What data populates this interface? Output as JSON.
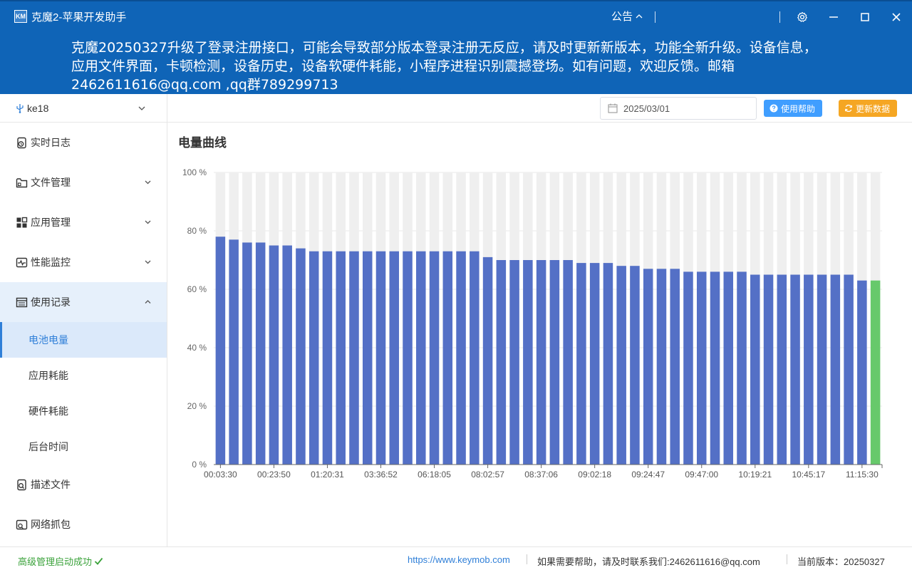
{
  "window": {
    "logo_text": "KM",
    "title": "克魔2-苹果开发助手",
    "notice_label": "公告",
    "accent": "#0f64b7"
  },
  "announcement": {
    "text": "克魔20250327升级了登录注册接口，可能会导致部分版本登录注册无反应，请及时更新新版本，功能全新升级。设备信息，应用文件界面，卡顿检测，设备历史，设备软硬件耗能，小程序进程识别震撼登场。如有问题，欢迎反馈。邮箱2462611616@qq.com ,qq群789299713"
  },
  "sidebar": {
    "device": "ke18",
    "items": [
      {
        "label": "实时日志",
        "icon": "log-icon"
      },
      {
        "label": "文件管理",
        "icon": "folder-icon"
      },
      {
        "label": "应用管理",
        "icon": "apps-icon"
      },
      {
        "label": "性能监控",
        "icon": "monitor-icon"
      },
      {
        "label": "使用记录",
        "icon": "records-icon"
      },
      {
        "label": "描述文件",
        "icon": "profile-icon"
      },
      {
        "label": "网络抓包",
        "icon": "capture-icon"
      }
    ],
    "subitems": [
      {
        "label": "电池电量"
      },
      {
        "label": "应用耗能"
      },
      {
        "label": "硬件耗能"
      },
      {
        "label": "后台时间"
      }
    ]
  },
  "toolbar": {
    "date": "2025/03/01",
    "help_label": "使用帮助",
    "refresh_label": "更新数据"
  },
  "chart_data": {
    "type": "bar",
    "title": "电量曲线",
    "xlabel": "",
    "ylabel": "",
    "ylim": [
      0,
      100
    ],
    "ytick_labels": [
      "0 %",
      "20 %",
      "40 %",
      "60 %",
      "80 %",
      "100 %"
    ],
    "x_tick_labels": [
      "00:03:30",
      "00:23:50",
      "01:20:31",
      "03:36:52",
      "06:18:05",
      "08:02:57",
      "08:37:06",
      "09:02:18",
      "09:24:47",
      "09:47:00",
      "10:19:21",
      "10:45:17",
      "11:15:30"
    ],
    "values": [
      78,
      77,
      76,
      76,
      75,
      75,
      74,
      73,
      73,
      73,
      73,
      73,
      73,
      73,
      73,
      73,
      73,
      73,
      73,
      73,
      71,
      70,
      70,
      70,
      70,
      70,
      70,
      69,
      69,
      69,
      68,
      68,
      67,
      67,
      67,
      66,
      66,
      66,
      66,
      66,
      65,
      65,
      65,
      65,
      65,
      65,
      65,
      65,
      63,
      63
    ],
    "colors": {
      "bar": "#5470c6",
      "last_bar": "#67c96b",
      "background_bar": "#efefef"
    },
    "grid": true
  },
  "status": {
    "left": "高级管理启动成功",
    "url": "https://www.keymob.com",
    "help": "如果需要帮助，请及时联系我们:2462611616@qq.com",
    "version_label": "当前版本：",
    "version": "20250327"
  }
}
